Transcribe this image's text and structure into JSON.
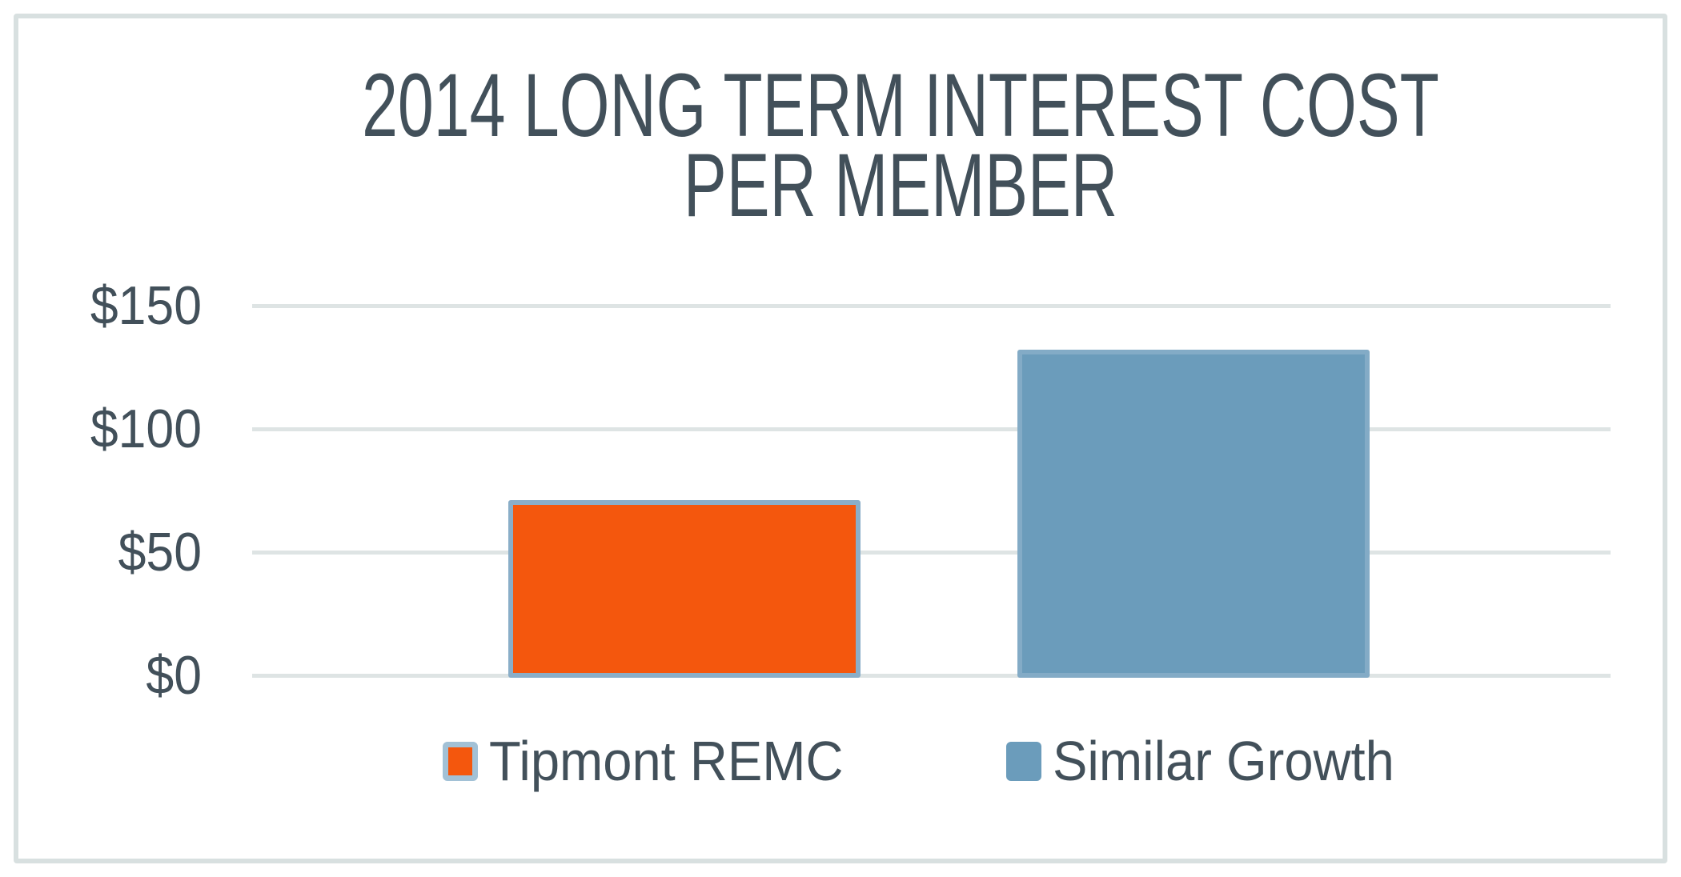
{
  "title": {
    "line1": "2014 LONG TERM INTEREST COST",
    "line2": "PER MEMBER"
  },
  "chart_data": {
    "type": "bar",
    "title": "2014 LONG TERM INTEREST COST PER MEMBER",
    "categories": [
      "Tipmont REMC",
      "Similar Growth"
    ],
    "series": [
      {
        "name": "Tipmont REMC",
        "value": 71,
        "color": "#f4570d",
        "border_color": "#8aaec8"
      },
      {
        "name": "Similar Growth",
        "value": 132,
        "color": "#6b9cbb",
        "border_color": "#83abc6"
      }
    ],
    "xlabel": "",
    "ylabel": "",
    "ylim": [
      0,
      150
    ],
    "yticks": [
      0,
      50,
      100,
      150
    ],
    "ytick_labels": [
      "$0",
      "$50",
      "$100",
      "$150"
    ],
    "grid": true,
    "legend_position": "bottom",
    "legend_swatch_border": "#a2c1d6"
  },
  "colors": {
    "text": "#42505a",
    "gridline": "#dee4e4",
    "frame": "#d8e0e0",
    "background": "#ffffff"
  }
}
